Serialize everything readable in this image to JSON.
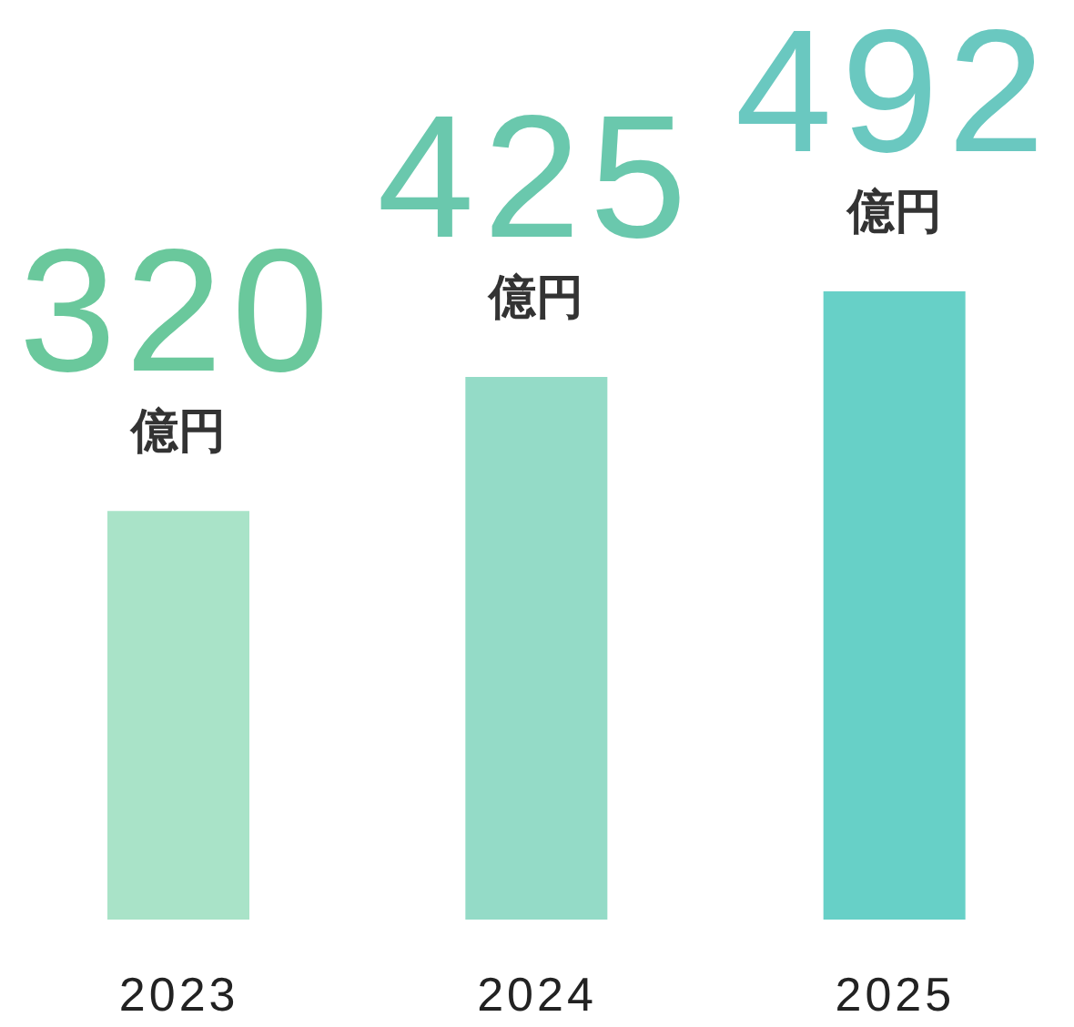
{
  "chart_data": {
    "type": "bar",
    "categories": [
      "2023",
      "2024",
      "2025"
    ],
    "values": [
      320,
      425,
      492
    ],
    "colors": [
      "#a9e3c8",
      "#94dbc7",
      "#67d0c7"
    ],
    "value_labels": [
      "320 億円",
      "425 億円",
      "492 億円"
    ]
  }
}
